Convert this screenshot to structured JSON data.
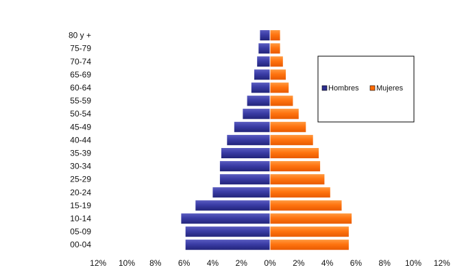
{
  "chart_data": {
    "type": "bar",
    "orientation": "horizontal",
    "subtype": "population-pyramid",
    "categories": [
      "80 y +",
      "75-79",
      "70-74",
      "65-69",
      "60-64",
      "55-59",
      "50-54",
      "45-49",
      "40-44",
      "35-39",
      "30-34",
      "25-29",
      "20-24",
      "15-19",
      "10-14",
      "05-09",
      "00-04"
    ],
    "series": [
      {
        "name": "Hombres",
        "color": "#2d2f8f",
        "values": [
          0.7,
          0.8,
          0.9,
          1.1,
          1.3,
          1.6,
          1.9,
          2.5,
          3.0,
          3.4,
          3.5,
          3.5,
          4.0,
          5.2,
          6.2,
          5.9,
          5.9
        ]
      },
      {
        "name": "Mujeres",
        "color": "#ff6a00",
        "values": [
          0.7,
          0.7,
          0.9,
          1.1,
          1.3,
          1.6,
          2.0,
          2.5,
          3.0,
          3.4,
          3.5,
          3.8,
          4.2,
          5.0,
          5.7,
          5.5,
          5.5
        ]
      }
    ],
    "xlim": [
      -12,
      12
    ],
    "xticks": [
      "12%",
      "10%",
      "8%",
      "6%",
      "4%",
      "2%",
      "0%",
      "2%",
      "4%",
      "6%",
      "8%",
      "10%",
      "12%"
    ],
    "xlabel": "",
    "ylabel": "",
    "title": "",
    "legend": {
      "position": "right",
      "entries": [
        "Hombres",
        "Mujeres"
      ]
    },
    "grid": false
  }
}
